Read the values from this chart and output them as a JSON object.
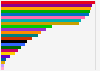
{
  "bars": [
    {
      "value": 100,
      "color": "#e8001c"
    },
    {
      "value": 97,
      "color": "#8b008b"
    },
    {
      "value": 96,
      "color": "#ffa500"
    },
    {
      "value": 95,
      "color": "#00aa00"
    },
    {
      "value": 94,
      "color": "#0070c0"
    },
    {
      "value": 90,
      "color": "#ff69b4"
    },
    {
      "value": 85,
      "color": "#00b0b0"
    },
    {
      "value": 83,
      "color": "#c8a000"
    },
    {
      "value": 55,
      "color": "#00cc00"
    },
    {
      "value": 48,
      "color": "#9933cc"
    },
    {
      "value": 43,
      "color": "#ff8c00"
    },
    {
      "value": 40,
      "color": "#008080"
    },
    {
      "value": 33,
      "color": "#cc3300"
    },
    {
      "value": 28,
      "color": "#000000"
    },
    {
      "value": 26,
      "color": "#3366ff"
    },
    {
      "value": 22,
      "color": "#006600"
    },
    {
      "value": 18,
      "color": "#cc0066"
    },
    {
      "value": 15,
      "color": "#ffcc00"
    },
    {
      "value": 10,
      "color": "#6600cc"
    },
    {
      "value": 6,
      "color": "#0055aa"
    },
    {
      "value": 5,
      "color": "#ddaa00"
    },
    {
      "value": 4,
      "color": "#cc99ff"
    },
    {
      "value": 3,
      "color": "#ffaacc"
    }
  ],
  "xlim": [
    0,
    105
  ],
  "background_color": "#f5f5f5",
  "bar_height": 0.72,
  "grid_color": "#cccccc"
}
